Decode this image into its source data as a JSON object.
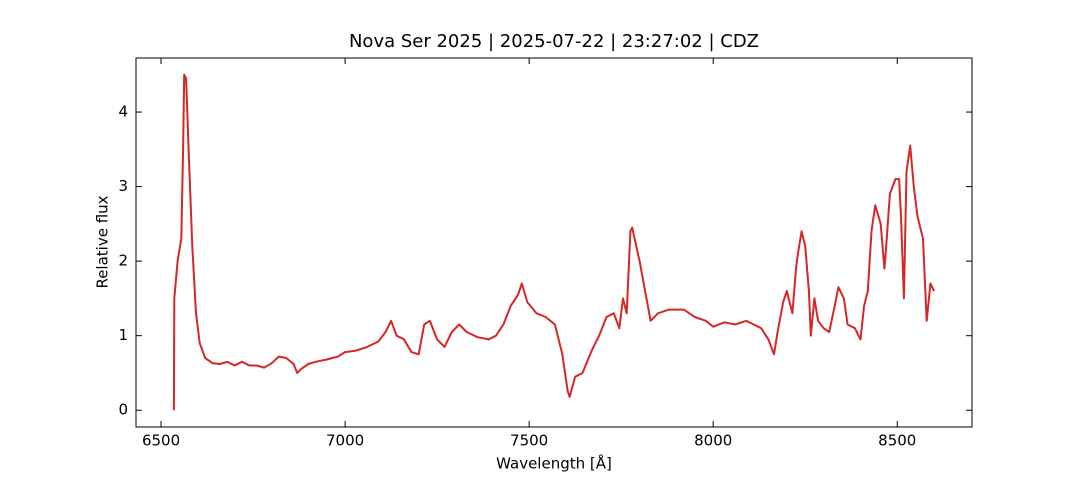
{
  "chart_data": {
    "type": "line",
    "title": "Nova Ser 2025 | 2025-07-22 | 23:27:02 | CDZ",
    "xlabel": "Wavelength [Å]",
    "ylabel": "Relative flux",
    "color": "#d62728",
    "x": [
      6535,
      6536,
      6545,
      6555,
      6560,
      6563,
      6568,
      6575,
      6585,
      6595,
      6605,
      6620,
      6640,
      6660,
      6680,
      6700,
      6720,
      6740,
      6760,
      6780,
      6800,
      6820,
      6840,
      6860,
      6870,
      6880,
      6900,
      6920,
      6950,
      6980,
      7000,
      7030,
      7060,
      7090,
      7110,
      7125,
      7140,
      7160,
      7180,
      7200,
      7215,
      7230,
      7250,
      7270,
      7290,
      7310,
      7330,
      7360,
      7390,
      7410,
      7430,
      7450,
      7470,
      7480,
      7495,
      7520,
      7545,
      7570,
      7590,
      7605,
      7610,
      7625,
      7645,
      7670,
      7690,
      7710,
      7730,
      7745,
      7755,
      7765,
      7775,
      7780,
      7800,
      7815,
      7830,
      7850,
      7880,
      7920,
      7950,
      7980,
      8000,
      8030,
      8060,
      8090,
      8110,
      8130,
      8150,
      8165,
      8175,
      8190,
      8200,
      8215,
      8225,
      8230,
      8240,
      8250,
      8260,
      8265,
      8275,
      8285,
      8300,
      8315,
      8330,
      8340,
      8355,
      8365,
      8385,
      8400,
      8410,
      8420,
      8430,
      8440,
      8455,
      8465,
      8470,
      8480,
      8495,
      8505,
      8510,
      8518,
      8525,
      8535,
      8545,
      8555,
      8570,
      8580,
      8590,
      8600
    ],
    "values": [
      0.0,
      1.5,
      2.0,
      2.3,
      3.5,
      4.5,
      4.45,
      3.5,
      2.2,
      1.3,
      0.9,
      0.7,
      0.63,
      0.62,
      0.65,
      0.6,
      0.65,
      0.6,
      0.6,
      0.57,
      0.63,
      0.72,
      0.7,
      0.62,
      0.5,
      0.55,
      0.62,
      0.65,
      0.68,
      0.72,
      0.78,
      0.8,
      0.85,
      0.92,
      1.05,
      1.2,
      1.0,
      0.95,
      0.78,
      0.75,
      1.15,
      1.2,
      0.95,
      0.85,
      1.05,
      1.15,
      1.05,
      0.98,
      0.95,
      1.0,
      1.15,
      1.4,
      1.55,
      1.7,
      1.45,
      1.3,
      1.25,
      1.15,
      0.75,
      0.25,
      0.18,
      0.45,
      0.5,
      0.8,
      1.0,
      1.25,
      1.3,
      1.1,
      1.5,
      1.3,
      2.4,
      2.45,
      2.0,
      1.6,
      1.2,
      1.3,
      1.35,
      1.35,
      1.25,
      1.2,
      1.12,
      1.18,
      1.15,
      1.2,
      1.15,
      1.1,
      0.95,
      0.75,
      1.05,
      1.45,
      1.6,
      1.3,
      1.9,
      2.1,
      2.4,
      2.2,
      1.6,
      1.0,
      1.5,
      1.2,
      1.1,
      1.05,
      1.4,
      1.65,
      1.5,
      1.15,
      1.1,
      0.95,
      1.4,
      1.6,
      2.4,
      2.75,
      2.5,
      1.9,
      2.2,
      2.9,
      3.1,
      3.1,
      2.6,
      1.5,
      3.2,
      3.55,
      3.0,
      2.6,
      2.3,
      1.2,
      1.7,
      1.6
    ],
    "xlim": [
      6432,
      8703
    ],
    "ylim": [
      -0.225,
      4.725
    ],
    "xticks": [
      6500,
      7000,
      7500,
      8000,
      8500
    ],
    "yticks": [
      0,
      1,
      2,
      3,
      4
    ]
  }
}
